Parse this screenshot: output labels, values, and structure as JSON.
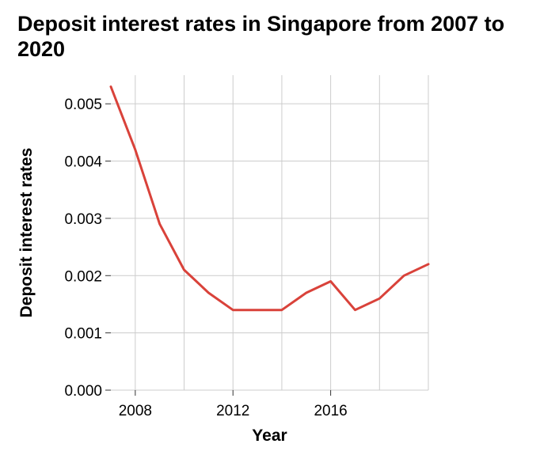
{
  "chart_data": {
    "type": "line",
    "title": "Deposit interest rates in Singapore from 2007 to 2020",
    "xlabel": "Year",
    "ylabel": "Deposit interest rates",
    "xlim": [
      2007,
      2020
    ],
    "ylim": [
      0,
      0.0055
    ],
    "x_ticks": [
      2008,
      2012,
      2016
    ],
    "x_gridlines": [
      2008,
      2010,
      2012,
      2014,
      2016,
      2018,
      2020
    ],
    "y_ticks": [
      0.0,
      0.001,
      0.002,
      0.003,
      0.004,
      0.005
    ],
    "y_tick_labels": [
      "0.000",
      "0.001",
      "0.002",
      "0.003",
      "0.004",
      "0.005"
    ],
    "grid": true,
    "series": [
      {
        "color": "#d9423a",
        "x": [
          2007,
          2008,
          2009,
          2010,
          2011,
          2012,
          2013,
          2014,
          2015,
          2016,
          2017,
          2018,
          2019,
          2020
        ],
        "y": [
          0.0053,
          0.0042,
          0.0029,
          0.0021,
          0.0017,
          0.0014,
          0.0014,
          0.0014,
          0.0017,
          0.0019,
          0.0014,
          0.0016,
          0.002,
          0.0022
        ]
      }
    ]
  }
}
